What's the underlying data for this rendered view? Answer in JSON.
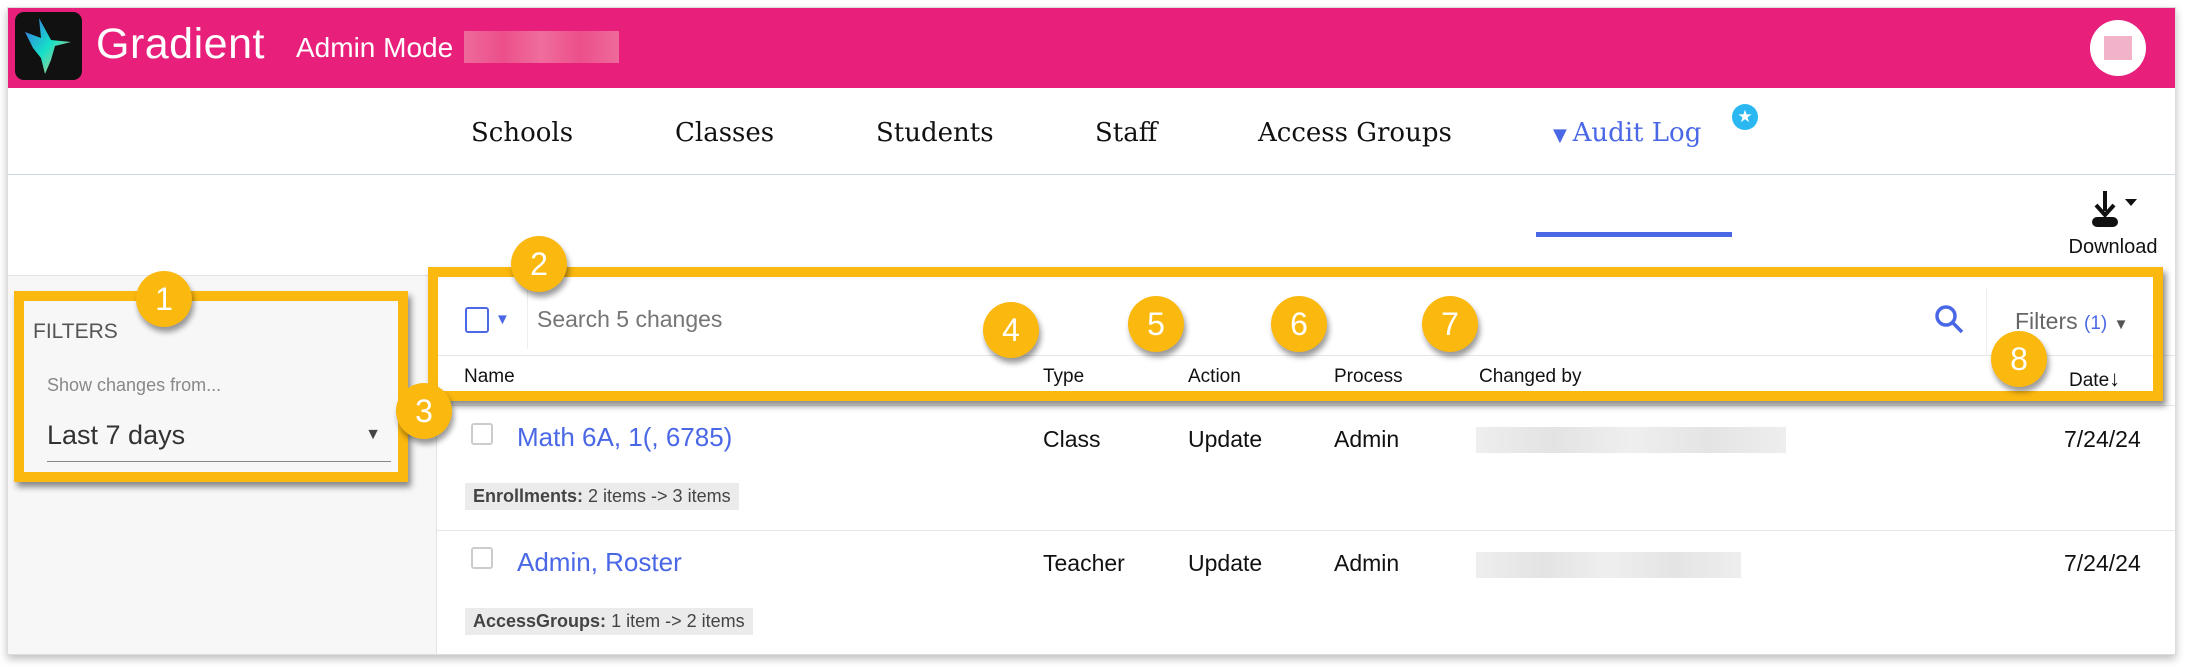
{
  "header": {
    "brand": "Gradient",
    "mode": "Admin Mode",
    "color": "#e8207c"
  },
  "nav": {
    "items": [
      {
        "label": "Schools"
      },
      {
        "label": "Classes"
      },
      {
        "label": "Students"
      },
      {
        "label": "Staff"
      },
      {
        "label": "Access Groups"
      },
      {
        "label": "Audit Log",
        "active": true
      }
    ],
    "accent": "#4a68e6",
    "star_icon": "star-badge-icon"
  },
  "toolbar": {
    "download_label": "Download"
  },
  "filters": {
    "title": "FILTERS",
    "field_label": "Show changes from...",
    "value": "Last 7 days"
  },
  "search": {
    "placeholder": "Search 5 changes",
    "filters_label": "Filters",
    "filters_count": "(1)"
  },
  "table": {
    "columns": [
      "Name",
      "Type",
      "Action",
      "Process",
      "Changed by",
      "Date"
    ],
    "rows": [
      {
        "name": "Math 6A, 1(, 6785)",
        "type": "Class",
        "action": "Update",
        "process": "Admin",
        "date": "7/24/24",
        "change_key": "Enrollments:",
        "change_value": "2 items -> 3 items"
      },
      {
        "name": "Admin, Roster",
        "type": "Teacher",
        "action": "Update",
        "process": "Admin",
        "date": "7/24/24",
        "change_key": "AccessGroups:",
        "change_value": "1 item -> 2 items"
      }
    ]
  },
  "callouts": [
    "1",
    "2",
    "3",
    "4",
    "5",
    "6",
    "7",
    "8"
  ],
  "callout_color": "#fbb80f"
}
